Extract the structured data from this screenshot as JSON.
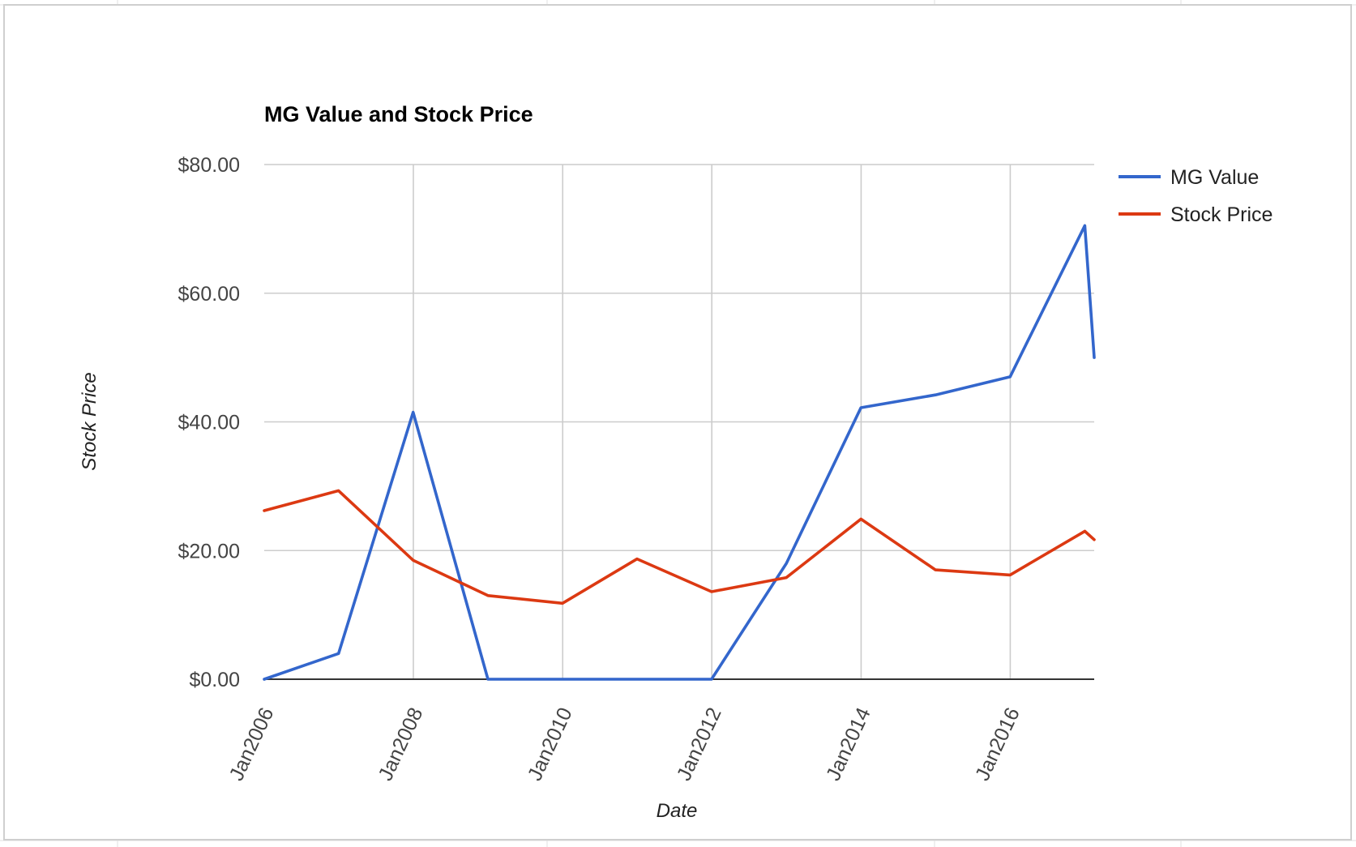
{
  "chart_data": {
    "type": "line",
    "title": "MG Value and Stock Price",
    "xlabel": "Date",
    "ylabel": "Stock Price",
    "x_ticks": [
      "Jan2006",
      "Jan2008",
      "Jan2010",
      "Jan2012",
      "Jan2014",
      "Jan2016"
    ],
    "y_ticks": [
      "$0.00",
      "$20.00",
      "$40.00",
      "$60.00",
      "$80.00"
    ],
    "ylim": [
      0,
      80
    ],
    "xlim": [
      "2006-01-01",
      "2017-02-15"
    ],
    "grid": true,
    "legend_position": "right",
    "x": [
      "2006-01-01",
      "2006-12-31",
      "2007-12-31",
      "2008-12-31",
      "2009-12-31",
      "2010-12-31",
      "2011-12-31",
      "2012-12-31",
      "2013-12-31",
      "2014-12-31",
      "2015-12-31",
      "2016-12-31",
      "2017-02-15"
    ],
    "series": [
      {
        "name": "MG Value",
        "color": "#3366cc",
        "values": [
          0.0,
          4.0,
          41.5,
          0.0,
          0.0,
          0.0,
          0.0,
          18.0,
          42.2,
          44.2,
          47.0,
          70.5,
          50.0
        ]
      },
      {
        "name": "Stock Price",
        "color": "#dc3912",
        "values": [
          26.2,
          29.3,
          18.5,
          13.0,
          11.8,
          18.7,
          13.6,
          15.8,
          24.9,
          17.0,
          16.2,
          23.0,
          21.7
        ]
      }
    ]
  }
}
